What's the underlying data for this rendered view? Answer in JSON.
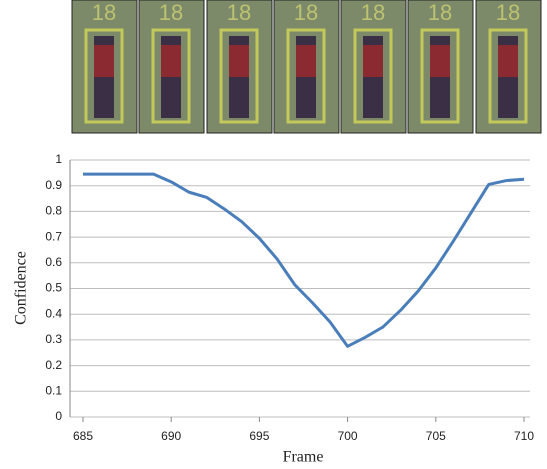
{
  "thumbnails": [
    {
      "label": "18"
    },
    {
      "label": "18"
    },
    {
      "label": "18"
    },
    {
      "label": "18"
    },
    {
      "label": "18"
    },
    {
      "label": "18"
    },
    {
      "label": "18"
    }
  ],
  "chart_data": {
    "type": "line",
    "x_label": "Frame",
    "y_label": "Confidence",
    "x": [
      685,
      686,
      687,
      688,
      689,
      690,
      691,
      692,
      693,
      694,
      695,
      696,
      697,
      698,
      699,
      700,
      701,
      702,
      703,
      704,
      705,
      706,
      707,
      708,
      709,
      710
    ],
    "series": [
      {
        "name": "Confidence",
        "color": "#4a7ebb",
        "values": [
          0.945,
          0.945,
          0.945,
          0.945,
          0.945,
          0.915,
          0.875,
          0.855,
          0.81,
          0.76,
          0.695,
          0.615,
          0.515,
          0.445,
          0.37,
          0.275,
          0.31,
          0.35,
          0.415,
          0.49,
          0.58,
          0.685,
          0.795,
          0.905,
          0.92,
          0.925
        ]
      }
    ],
    "xlim": [
      685,
      710
    ],
    "xticks": [
      685,
      690,
      695,
      700,
      705,
      710
    ],
    "ylim": [
      0,
      1
    ],
    "yticks": [
      0,
      0.1,
      0.2,
      0.3,
      0.4,
      0.5,
      0.6,
      0.7,
      0.8,
      0.9,
      1
    ],
    "grid": true
  }
}
